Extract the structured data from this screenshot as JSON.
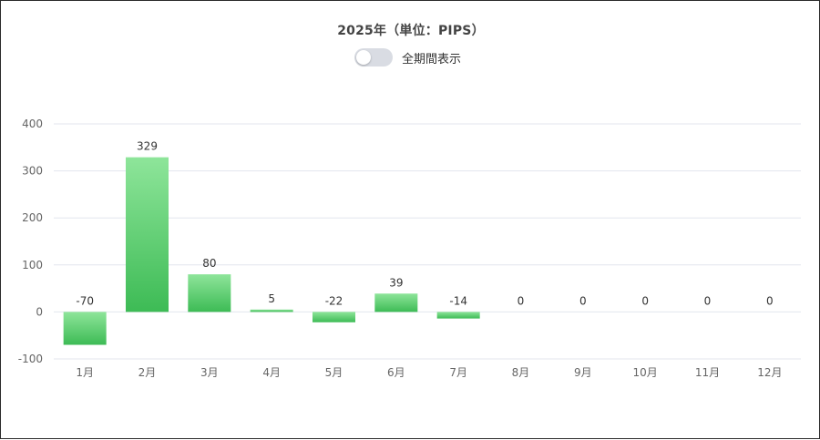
{
  "header": {
    "title": "2025年（単位：PIPS）",
    "toggle_label": "全期間表示",
    "toggle_on": false
  },
  "colors": {
    "bar_top": "#8ee59a",
    "bar_bottom": "#3dbb55",
    "grid": "#e3e6ee",
    "axis_text": "#666666",
    "label_text": "#333333"
  },
  "chart_data": {
    "type": "bar",
    "title": "2025年（単位：PIPS）",
    "xlabel": "",
    "ylabel": "",
    "categories": [
      "1月",
      "2月",
      "3月",
      "4月",
      "5月",
      "6月",
      "7月",
      "8月",
      "9月",
      "10月",
      "11月",
      "12月"
    ],
    "values": [
      -70,
      329,
      80,
      5,
      -22,
      39,
      -14,
      0,
      0,
      0,
      0,
      0
    ],
    "ylim": [
      -100,
      400
    ],
    "yticks": [
      -100,
      0,
      100,
      200,
      300,
      400
    ],
    "grid": true,
    "data_labels": true
  }
}
